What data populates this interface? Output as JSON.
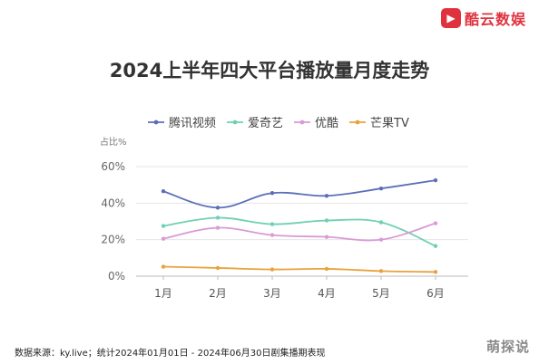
{
  "brand": {
    "icon_glyph": "▶",
    "name": "酷云数娱",
    "color": "#e0323e"
  },
  "title": "2024上半年四大平台播放量月度走势",
  "footer": "数据来源：ky.live；统计2024年01月01日 - 2024年06月30日剧集播期表现",
  "watermark": "萌探说",
  "chart_data": {
    "type": "line",
    "ylabel": "占比%",
    "categories": [
      "1月",
      "2月",
      "3月",
      "4月",
      "5月",
      "6月"
    ],
    "ylim": [
      0,
      60
    ],
    "yticks": [
      "0%",
      "20%",
      "40%",
      "60%"
    ],
    "grid": true,
    "legend": "top",
    "series": [
      {
        "name": "腾讯视频",
        "color": "#5b6fb8",
        "values": [
          46.5,
          37.5,
          45.5,
          44,
          48,
          52.5
        ]
      },
      {
        "name": "爱奇艺",
        "color": "#6fd0b4",
        "values": [
          27.5,
          32,
          28.5,
          30.5,
          29.5,
          16.5
        ]
      },
      {
        "name": "优酷",
        "color": "#d99ad6",
        "values": [
          20.5,
          26.5,
          22.5,
          21.5,
          20,
          29
        ]
      },
      {
        "name": "芒果TV",
        "color": "#e8a33d",
        "values": [
          5.2,
          4.5,
          3.7,
          4,
          2.8,
          2.3
        ]
      }
    ]
  }
}
